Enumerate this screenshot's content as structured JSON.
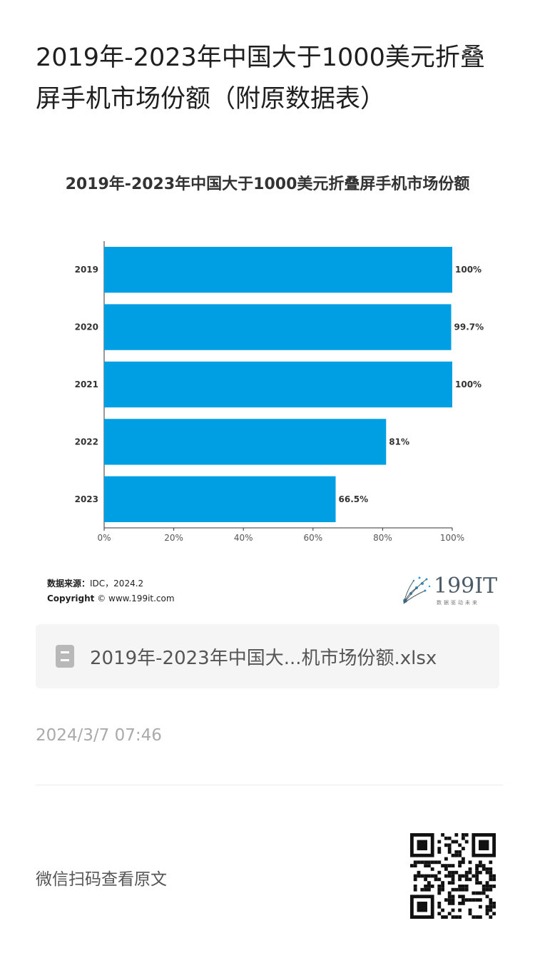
{
  "article": {
    "title": "2019年-2023年中国大于1000美元折叠屏手机市场份额（附原数据表）"
  },
  "chart_data": {
    "type": "bar",
    "orientation": "horizontal",
    "title": "2019年-2023年中国大于1000美元折叠屏手机市场份额",
    "categories": [
      "2019",
      "2020",
      "2021",
      "2022",
      "2023"
    ],
    "values": [
      100,
      99.7,
      100,
      81,
      66.5
    ],
    "value_labels": [
      "100%",
      "99.7%",
      "100%",
      "81%",
      "66.5%"
    ],
    "xlim": [
      0,
      100
    ],
    "xticks": [
      0,
      20,
      40,
      60,
      80,
      100
    ],
    "xtick_labels": [
      "0%",
      "20%",
      "40%",
      "60%",
      "80%",
      "100%"
    ],
    "bar_color": "#009fe3",
    "grid": false,
    "source_label": "数据来源：",
    "source_value": "IDC，2024.2",
    "copyright_label": "Copyright",
    "copyright_value": "© www.199it.com"
  },
  "brand": {
    "name": "199IT",
    "tagline": "数据驱动未来"
  },
  "attachment": {
    "icon": "spreadsheet-file-icon",
    "filename": "2019年-2023年中国大...机市场份额.xlsx"
  },
  "meta": {
    "timestamp": "2024/3/7 07:46"
  },
  "footer": {
    "scan_label": "微信扫码查看原文",
    "qr_icon": "qr-code-icon"
  }
}
